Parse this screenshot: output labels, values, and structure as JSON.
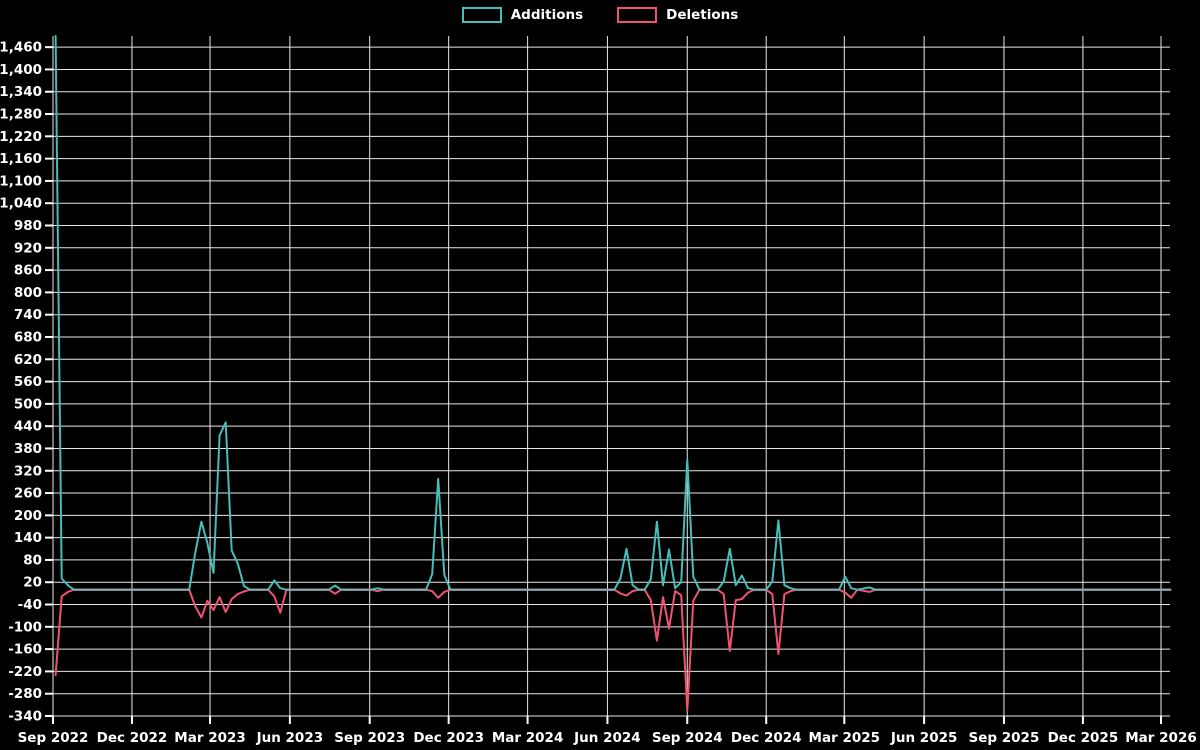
{
  "chart_data": {
    "type": "line",
    "title": "",
    "legend_position": "top-center",
    "grid": true,
    "background": "#000000",
    "colors": {
      "additions": "#46bdb9",
      "deletions": "#f0536f",
      "zero_overlap": "#8ca5ad",
      "gridline": "#e8e8e8",
      "tick_text": "#ffffff"
    },
    "legend": [
      {
        "label": "Additions",
        "color": "#46bdb9"
      },
      {
        "label": "Deletions",
        "color": "#f0536f"
      }
    ],
    "y_axis": {
      "min": -340,
      "max": 1490,
      "tick_min": -340,
      "tick_step": 60,
      "tick_labels": [
        "-340",
        "-280",
        "-220",
        "-160",
        "-100",
        "-40",
        "20",
        "80",
        "140",
        "200",
        "260",
        "320",
        "380",
        "440",
        "500",
        "560",
        "620",
        "680",
        "740",
        "800",
        "860",
        "920",
        "980",
        "1,040",
        "1,100",
        "1,160",
        "1,220",
        "1,280",
        "1,340",
        "1,400",
        "1,460"
      ]
    },
    "x_axis": {
      "ticks": [
        {
          "date": "2022-09-01",
          "label": "Sep 2022"
        },
        {
          "date": "2022-12-01",
          "label": "Dec 2022"
        },
        {
          "date": "2023-03-01",
          "label": "Mar 2023"
        },
        {
          "date": "2023-06-01",
          "label": "Jun 2023"
        },
        {
          "date": "2023-09-01",
          "label": "Sep 2023"
        },
        {
          "date": "2023-12-01",
          "label": "Dec 2023"
        },
        {
          "date": "2024-03-01",
          "label": "Mar 2024"
        },
        {
          "date": "2024-06-01",
          "label": "Jun 2024"
        },
        {
          "date": "2024-09-01",
          "label": "Sep 2024"
        },
        {
          "date": "2024-12-01",
          "label": "Dec 2024"
        },
        {
          "date": "2025-03-01",
          "label": "Mar 2025"
        },
        {
          "date": "2025-06-01",
          "label": "Jun 2025"
        },
        {
          "date": "2025-09-01",
          "label": "Sep 2025"
        },
        {
          "date": "2025-12-01",
          "label": "Dec 2025"
        },
        {
          "date": "2026-03-01",
          "label": "Mar 2026"
        }
      ]
    },
    "series_names": [
      "Additions",
      "Deletions"
    ],
    "points": [
      [
        "2022-09-04",
        1490,
        -230
      ],
      [
        "2022-09-11",
        30,
        -18
      ],
      [
        "2022-09-18",
        12,
        -6
      ],
      [
        "2022-09-25",
        0,
        0
      ],
      [
        "2023-02-05",
        0,
        0
      ],
      [
        "2023-02-12",
        100,
        -45
      ],
      [
        "2023-02-19",
        183,
        -75
      ],
      [
        "2023-02-26",
        125,
        -30
      ],
      [
        "2023-03-05",
        45,
        -55
      ],
      [
        "2023-03-12",
        415,
        -20
      ],
      [
        "2023-03-19",
        450,
        -60
      ],
      [
        "2023-03-26",
        105,
        -25
      ],
      [
        "2023-04-02",
        70,
        -12
      ],
      [
        "2023-04-09",
        10,
        -5
      ],
      [
        "2023-04-16",
        0,
        0
      ],
      [
        "2023-05-07",
        0,
        0
      ],
      [
        "2023-05-14",
        25,
        -18
      ],
      [
        "2023-05-21",
        4,
        -62
      ],
      [
        "2023-05-28",
        0,
        0
      ],
      [
        "2023-07-16",
        0,
        0
      ],
      [
        "2023-07-23",
        11,
        -11
      ],
      [
        "2023-07-30",
        0,
        0
      ],
      [
        "2023-09-03",
        0,
        0
      ],
      [
        "2023-09-10",
        4,
        -4
      ],
      [
        "2023-09-17",
        0,
        0
      ],
      [
        "2023-11-05",
        0,
        0
      ],
      [
        "2023-11-12",
        42,
        -4
      ],
      [
        "2023-11-19",
        298,
        -22
      ],
      [
        "2023-11-26",
        40,
        -6
      ],
      [
        "2023-12-03",
        0,
        0
      ],
      [
        "2024-06-09",
        0,
        0
      ],
      [
        "2024-06-16",
        30,
        -10
      ],
      [
        "2024-06-23",
        110,
        -16
      ],
      [
        "2024-06-30",
        12,
        -4
      ],
      [
        "2024-07-07",
        0,
        0
      ],
      [
        "2024-07-14",
        0,
        0
      ],
      [
        "2024-07-21",
        28,
        -28
      ],
      [
        "2024-07-28",
        183,
        -137
      ],
      [
        "2024-08-04",
        12,
        -20
      ],
      [
        "2024-08-11",
        108,
        -104
      ],
      [
        "2024-08-18",
        4,
        -4
      ],
      [
        "2024-08-25",
        20,
        -15
      ],
      [
        "2024-09-01",
        350,
        -325
      ],
      [
        "2024-09-08",
        35,
        -30
      ],
      [
        "2024-09-15",
        0,
        0
      ],
      [
        "2024-10-06",
        0,
        0
      ],
      [
        "2024-10-13",
        22,
        -12
      ],
      [
        "2024-10-20",
        110,
        -165
      ],
      [
        "2024-10-27",
        12,
        -28
      ],
      [
        "2024-11-03",
        38,
        -25
      ],
      [
        "2024-11-10",
        4,
        -8
      ],
      [
        "2024-11-17",
        0,
        0
      ],
      [
        "2024-12-01",
        0,
        0
      ],
      [
        "2024-12-08",
        22,
        -12
      ],
      [
        "2024-12-15",
        186,
        -173
      ],
      [
        "2024-12-22",
        12,
        -12
      ],
      [
        "2024-12-29",
        4,
        -4
      ],
      [
        "2025-01-05",
        0,
        0
      ],
      [
        "2025-02-23",
        0,
        0
      ],
      [
        "2025-03-02",
        35,
        -8
      ],
      [
        "2025-03-09",
        4,
        -22
      ],
      [
        "2025-03-16",
        0,
        0
      ],
      [
        "2025-03-30",
        6,
        -6
      ],
      [
        "2025-04-06",
        0,
        0
      ],
      [
        "2026-03-12",
        0,
        0
      ]
    ]
  }
}
